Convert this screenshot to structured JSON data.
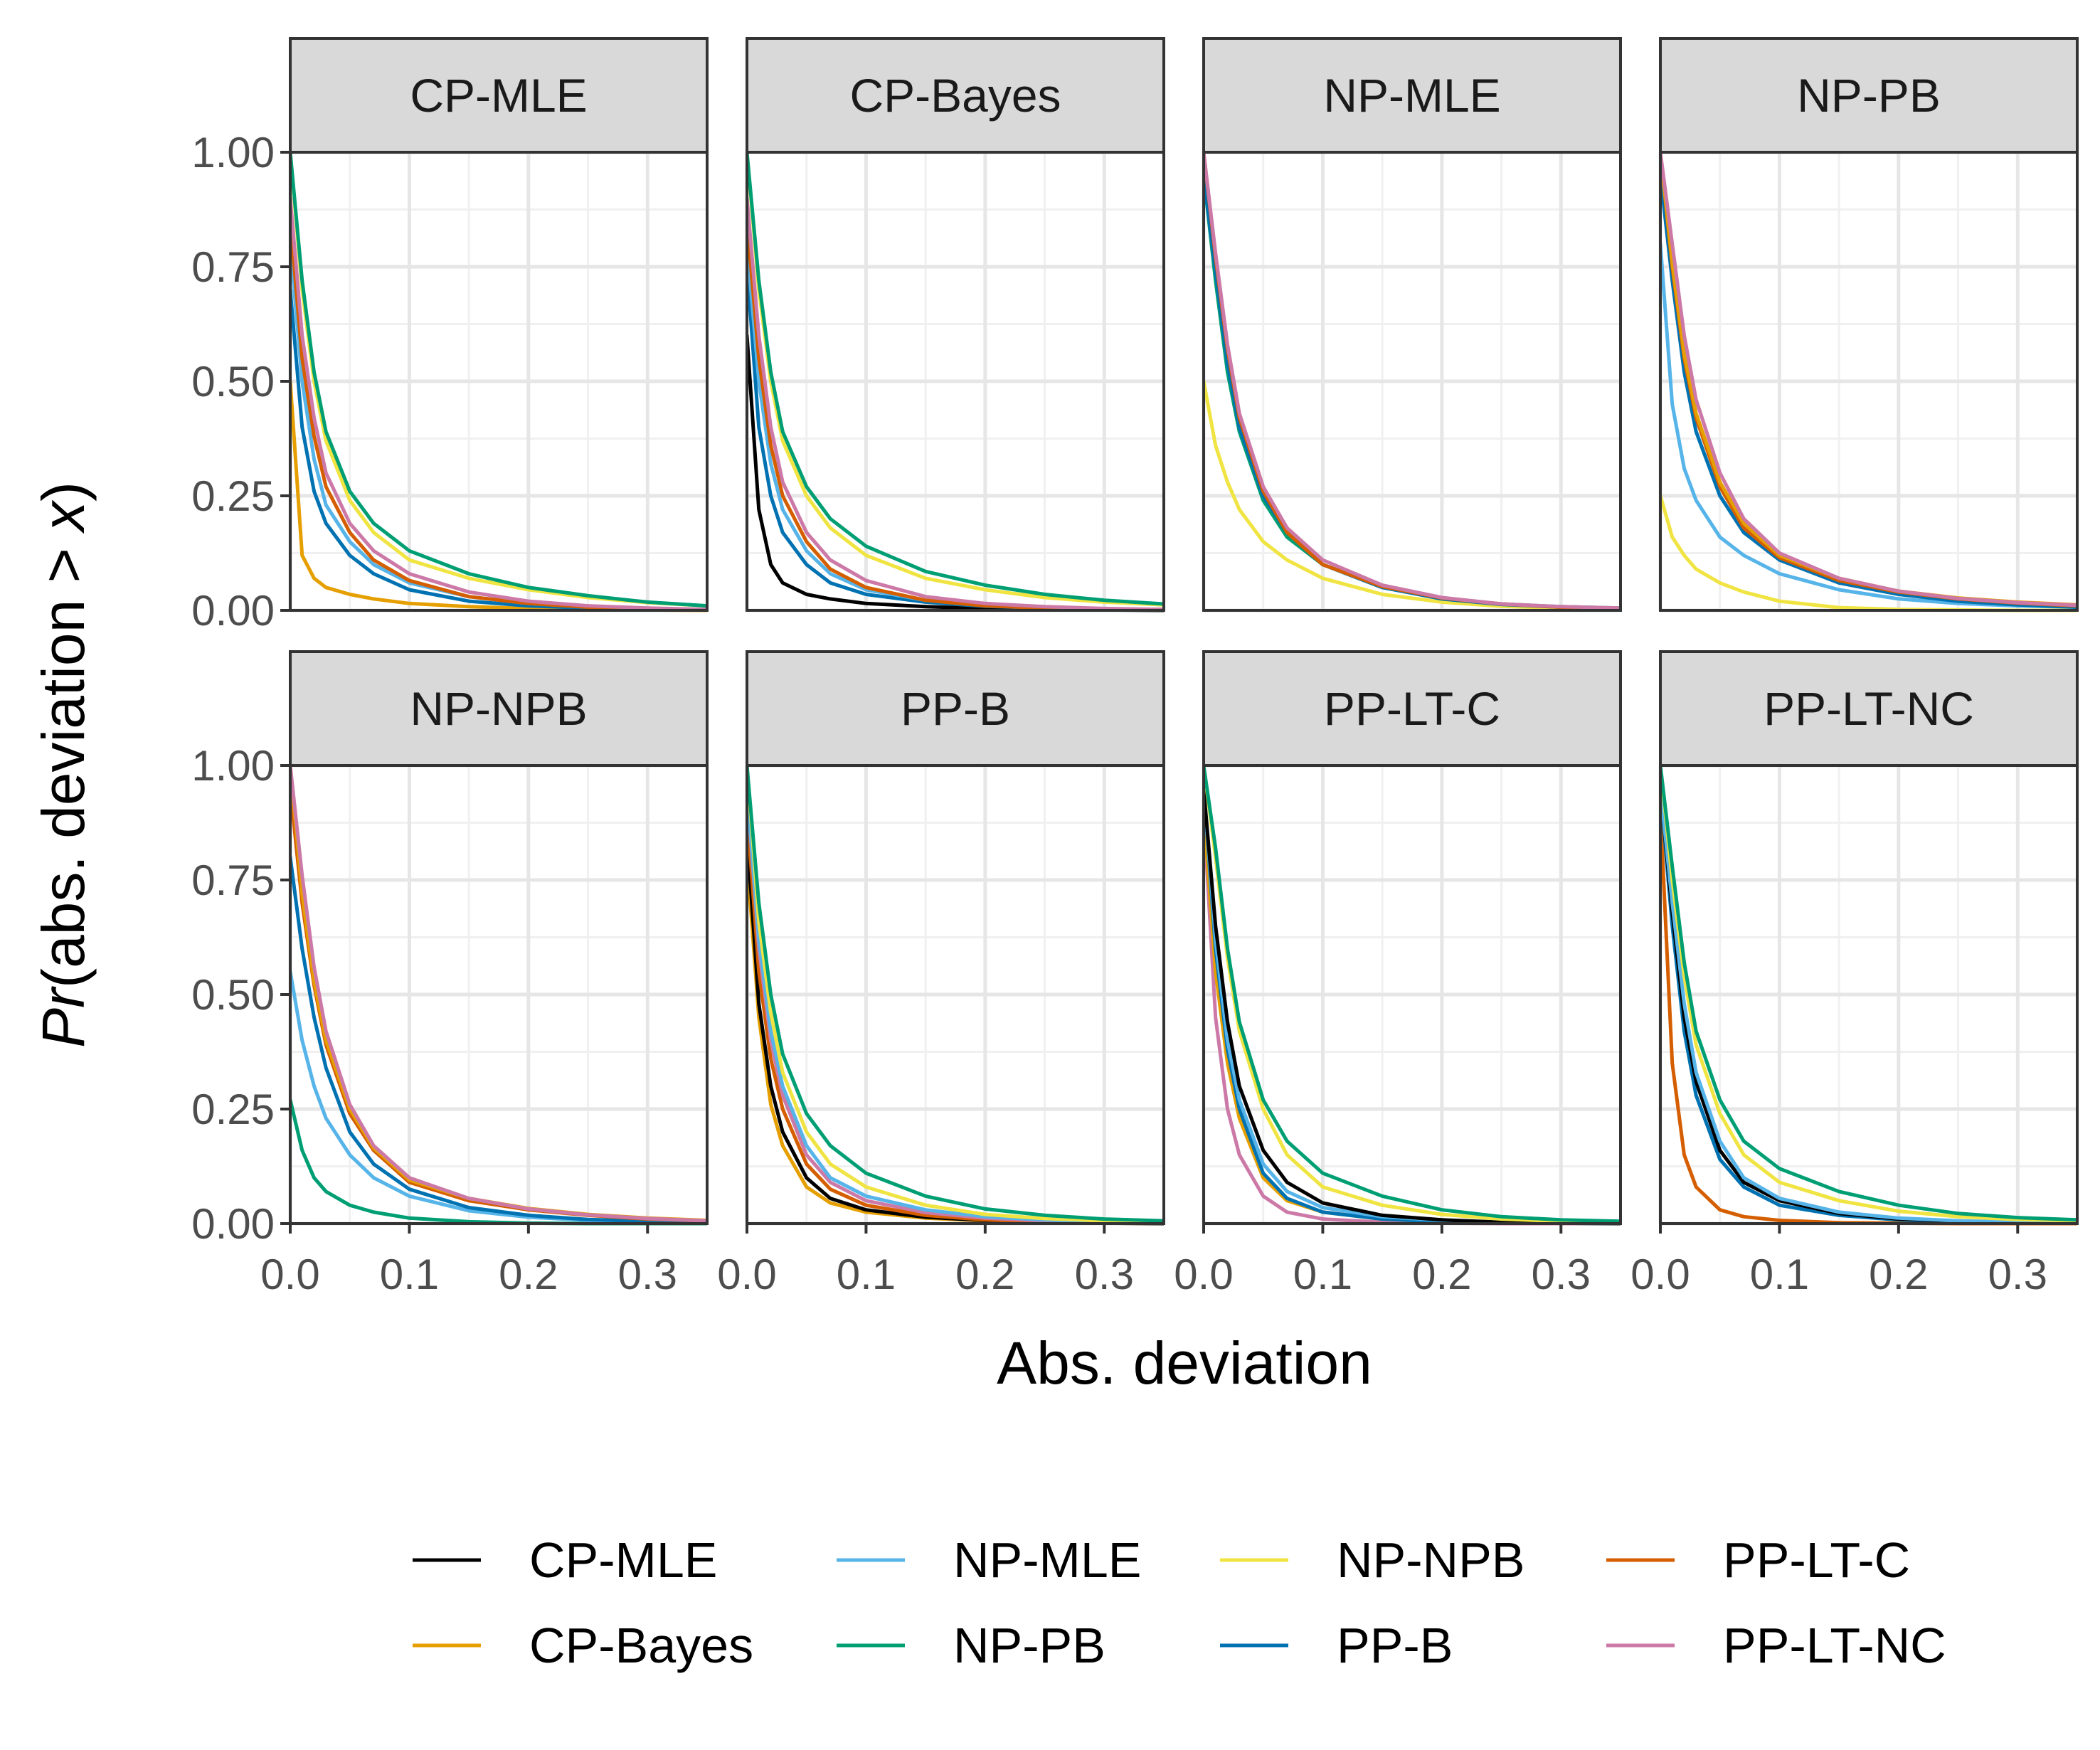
{
  "chart_data": {
    "type": "line",
    "xlabel": "Abs. deviation",
    "ylabel": {
      "italic": "Pr",
      "text": "(abs. deviation > ",
      "var": "x",
      "close": ")"
    },
    "xlim": [
      0,
      0.35
    ],
    "ylim": [
      0,
      1
    ],
    "x_ticks": [
      0,
      0.1,
      0.2,
      0.3
    ],
    "x_tick_labels": [
      "0.0",
      "0.1",
      "0.2",
      "0.3"
    ],
    "y_ticks": [
      0,
      0.25,
      0.5,
      0.75,
      1
    ],
    "y_tick_labels": [
      "0.00",
      "0.25",
      "0.50",
      "0.75",
      "1.00"
    ],
    "grid": true,
    "legend_position": "bottom",
    "series_colors": {
      "CP-MLE": "#000000",
      "CP-Bayes": "#E69F00",
      "NP-MLE": "#56B4E9",
      "NP-PB": "#009E73",
      "NP-NPB": "#F0E442",
      "PP-B": "#0072B2",
      "PP-LT-C": "#D55E00",
      "PP-LT-NC": "#CC79A7"
    },
    "legend_items": [
      "CP-MLE",
      "CP-Bayes",
      "NP-MLE",
      "NP-PB",
      "NP-NPB",
      "PP-B",
      "PP-LT-C",
      "PP-LT-NC"
    ],
    "x": [
      0,
      0.01,
      0.02,
      0.03,
      0.05,
      0.07,
      0.1,
      0.15,
      0.2,
      0.25,
      0.3,
      0.35
    ],
    "panels": [
      {
        "title": "CP-MLE",
        "series": [
          {
            "name": "CP-Bayes",
            "values": [
              0.5,
              0.12,
              0.07,
              0.05,
              0.035,
              0.025,
              0.015,
              0.008,
              0.004,
              0.002,
              0.001,
              0
            ]
          },
          {
            "name": "PP-B",
            "values": [
              0.7,
              0.4,
              0.26,
              0.19,
              0.12,
              0.08,
              0.045,
              0.02,
              0.01,
              0.005,
              0.003,
              0.001
            ]
          },
          {
            "name": "NP-MLE",
            "values": [
              0.8,
              0.5,
              0.33,
              0.23,
              0.15,
              0.1,
              0.06,
              0.03,
              0.015,
              0.008,
              0.004,
              0.002
            ]
          },
          {
            "name": "PP-LT-C",
            "values": [
              0.85,
              0.55,
              0.38,
              0.27,
              0.17,
              0.11,
              0.065,
              0.03,
              0.015,
              0.007,
              0.003,
              0.001
            ]
          },
          {
            "name": "PP-LT-NC",
            "values": [
              0.9,
              0.6,
              0.42,
              0.3,
              0.19,
              0.13,
              0.08,
              0.04,
              0.02,
              0.01,
              0.005,
              0.002
            ]
          },
          {
            "name": "NP-NPB",
            "values": [
              1,
              0.7,
              0.5,
              0.37,
              0.24,
              0.17,
              0.11,
              0.07,
              0.045,
              0.028,
              0.017,
              0.01
            ]
          },
          {
            "name": "NP-PB",
            "values": [
              1,
              0.72,
              0.52,
              0.39,
              0.26,
              0.19,
              0.13,
              0.08,
              0.05,
              0.032,
              0.018,
              0.01
            ]
          }
        ]
      },
      {
        "title": "CP-Bayes",
        "series": [
          {
            "name": "CP-MLE",
            "values": [
              0.6,
              0.22,
              0.1,
              0.06,
              0.035,
              0.025,
              0.015,
              0.008,
              0.004,
              0.002,
              0.001,
              0
            ]
          },
          {
            "name": "PP-B",
            "values": [
              0.75,
              0.4,
              0.25,
              0.17,
              0.1,
              0.06,
              0.035,
              0.018,
              0.009,
              0.005,
              0.003,
              0.002
            ]
          },
          {
            "name": "NP-MLE",
            "values": [
              0.8,
              0.5,
              0.32,
              0.22,
              0.13,
              0.08,
              0.045,
              0.022,
              0.011,
              0.006,
              0.003,
              0.002
            ]
          },
          {
            "name": "PP-LT-C",
            "values": [
              0.85,
              0.55,
              0.36,
              0.25,
              0.15,
              0.09,
              0.05,
              0.022,
              0.01,
              0.005,
              0.003,
              0.002
            ]
          },
          {
            "name": "PP-LT-NC",
            "values": [
              0.9,
              0.6,
              0.4,
              0.28,
              0.17,
              0.11,
              0.065,
              0.03,
              0.015,
              0.008,
              0.004,
              0.002
            ]
          },
          {
            "name": "NP-NPB",
            "values": [
              1,
              0.7,
              0.5,
              0.37,
              0.25,
              0.18,
              0.12,
              0.07,
              0.045,
              0.028,
              0.018,
              0.012
            ]
          },
          {
            "name": "NP-PB",
            "values": [
              1,
              0.72,
              0.52,
              0.39,
              0.27,
              0.2,
              0.14,
              0.085,
              0.055,
              0.035,
              0.022,
              0.014
            ]
          }
        ]
      },
      {
        "title": "NP-MLE",
        "series": [
          {
            "name": "NP-NPB",
            "values": [
              0.5,
              0.36,
              0.28,
              0.22,
              0.15,
              0.11,
              0.07,
              0.035,
              0.018,
              0.009,
              0.005,
              0.003
            ]
          },
          {
            "name": "NP-PB",
            "values": [
              0.95,
              0.72,
              0.52,
              0.39,
              0.24,
              0.16,
              0.1,
              0.05,
              0.027,
              0.014,
              0.008,
              0.005
            ]
          },
          {
            "name": "PP-B",
            "values": [
              0.95,
              0.74,
              0.54,
              0.4,
              0.25,
              0.17,
              0.1,
              0.05,
              0.025,
              0.013,
              0.007,
              0.004
            ]
          },
          {
            "name": "PP-LT-C",
            "values": [
              1,
              0.77,
              0.57,
              0.42,
              0.26,
              0.17,
              0.1,
              0.052,
              0.027,
              0.014,
              0.007,
              0.004
            ]
          },
          {
            "name": "PP-LT-NC",
            "values": [
              1,
              0.78,
              0.58,
              0.43,
              0.27,
              0.18,
              0.11,
              0.055,
              0.028,
              0.014,
              0.008,
              0.005
            ]
          }
        ]
      },
      {
        "title": "NP-PB",
        "series": [
          {
            "name": "NP-NPB",
            "values": [
              0.25,
              0.16,
              0.12,
              0.09,
              0.06,
              0.04,
              0.02,
              0.006,
              0.002,
              0.001,
              0,
              0
            ]
          },
          {
            "name": "NP-MLE",
            "values": [
              0.8,
              0.45,
              0.31,
              0.24,
              0.16,
              0.12,
              0.08,
              0.045,
              0.025,
              0.015,
              0.01,
              0.007
            ]
          },
          {
            "name": "PP-B",
            "values": [
              0.95,
              0.72,
              0.52,
              0.39,
              0.25,
              0.17,
              0.11,
              0.06,
              0.035,
              0.02,
              0.012,
              0.007
            ]
          },
          {
            "name": "PP-LT-C",
            "values": [
              1,
              0.75,
              0.55,
              0.42,
              0.27,
              0.18,
              0.115,
              0.065,
              0.04,
              0.025,
              0.016,
              0.01
            ]
          },
          {
            "name": "CP-Bayes",
            "values": [
              1,
              0.76,
              0.56,
              0.43,
              0.28,
              0.19,
              0.12,
              0.07,
              0.042,
              0.027,
              0.018,
              0.012
            ]
          },
          {
            "name": "PP-LT-NC",
            "values": [
              1,
              0.8,
              0.6,
              0.46,
              0.3,
              0.2,
              0.125,
              0.07,
              0.042,
              0.026,
              0.017,
              0.011
            ]
          }
        ]
      },
      {
        "title": "NP-NPB",
        "series": [
          {
            "name": "NP-PB",
            "values": [
              0.27,
              0.16,
              0.1,
              0.07,
              0.04,
              0.025,
              0.012,
              0.004,
              0.001,
              0,
              0,
              0
            ]
          },
          {
            "name": "NP-MLE",
            "values": [
              0.55,
              0.4,
              0.3,
              0.23,
              0.15,
              0.1,
              0.06,
              0.028,
              0.014,
              0.007,
              0.004,
              0.002
            ]
          },
          {
            "name": "PP-B",
            "values": [
              0.8,
              0.6,
              0.45,
              0.34,
              0.2,
              0.13,
              0.075,
              0.035,
              0.018,
              0.009,
              0.005,
              0.003
            ]
          },
          {
            "name": "PP-LT-C",
            "values": [
              0.95,
              0.7,
              0.52,
              0.39,
              0.24,
              0.16,
              0.09,
              0.05,
              0.03,
              0.018,
              0.01,
              0.006
            ]
          },
          {
            "name": "CP-Bayes",
            "values": [
              1,
              0.72,
              0.53,
              0.4,
              0.25,
              0.165,
              0.095,
              0.055,
              0.033,
              0.02,
              0.012,
              0.007
            ]
          },
          {
            "name": "PP-LT-NC",
            "values": [
              1,
              0.76,
              0.56,
              0.42,
              0.26,
              0.17,
              0.1,
              0.055,
              0.032,
              0.019,
              0.011,
              0.006
            ]
          }
        ]
      },
      {
        "title": "PP-B",
        "series": [
          {
            "name": "CP-Bayes",
            "values": [
              0.8,
              0.45,
              0.26,
              0.17,
              0.08,
              0.045,
              0.025,
              0.012,
              0.006,
              0.003,
              0.001,
              0
            ]
          },
          {
            "name": "CP-MLE",
            "values": [
              0.85,
              0.48,
              0.3,
              0.2,
              0.1,
              0.055,
              0.03,
              0.014,
              0.007,
              0.003,
              0.001,
              0
            ]
          },
          {
            "name": "PP-LT-C",
            "values": [
              0.9,
              0.55,
              0.36,
              0.25,
              0.13,
              0.075,
              0.04,
              0.018,
              0.008,
              0.004,
              0.002,
              0.001
            ]
          },
          {
            "name": "PP-LT-NC",
            "values": [
              0.95,
              0.6,
              0.4,
              0.28,
              0.15,
              0.09,
              0.05,
              0.024,
              0.012,
              0.006,
              0.003,
              0.001
            ]
          },
          {
            "name": "NP-MLE",
            "values": [
              0.95,
              0.62,
              0.42,
              0.3,
              0.17,
              0.1,
              0.06,
              0.03,
              0.015,
              0.008,
              0.004,
              0.002
            ]
          },
          {
            "name": "NP-NPB",
            "values": [
              1,
              0.66,
              0.46,
              0.33,
              0.2,
              0.13,
              0.08,
              0.04,
              0.02,
              0.011,
              0.006,
              0.003
            ]
          },
          {
            "name": "NP-PB",
            "values": [
              1,
              0.7,
              0.5,
              0.37,
              0.24,
              0.17,
              0.11,
              0.06,
              0.032,
              0.018,
              0.01,
              0.006
            ]
          }
        ]
      },
      {
        "title": "PP-LT-C",
        "series": [
          {
            "name": "PP-LT-NC",
            "values": [
              0.9,
              0.45,
              0.25,
              0.15,
              0.06,
              0.025,
              0.01,
              0.003,
              0.001,
              0,
              0,
              0
            ]
          },
          {
            "name": "CP-Bayes",
            "values": [
              0.9,
              0.55,
              0.35,
              0.23,
              0.1,
              0.05,
              0.025,
              0.01,
              0.004,
              0.002,
              0.001,
              0
            ]
          },
          {
            "name": "PP-B",
            "values": [
              0.95,
              0.6,
              0.38,
              0.25,
              0.11,
              0.055,
              0.025,
              0.01,
              0.004,
              0.002,
              0.001,
              0
            ]
          },
          {
            "name": "NP-MLE",
            "values": [
              0.95,
              0.62,
              0.4,
              0.27,
              0.13,
              0.07,
              0.035,
              0.015,
              0.007,
              0.003,
              0.001,
              0
            ]
          },
          {
            "name": "CP-MLE",
            "values": [
              0.95,
              0.65,
              0.44,
              0.3,
              0.16,
              0.09,
              0.045,
              0.018,
              0.008,
              0.003,
              0.001,
              0
            ]
          },
          {
            "name": "NP-NPB",
            "values": [
              1,
              0.8,
              0.58,
              0.42,
              0.25,
              0.15,
              0.08,
              0.04,
              0.02,
              0.01,
              0.005,
              0.003
            ]
          },
          {
            "name": "NP-PB",
            "values": [
              1,
              0.82,
              0.6,
              0.44,
              0.27,
              0.18,
              0.11,
              0.06,
              0.03,
              0.015,
              0.008,
              0.005
            ]
          }
        ]
      },
      {
        "title": "PP-LT-NC",
        "series": [
          {
            "name": "PP-LT-C",
            "values": [
              0.9,
              0.35,
              0.15,
              0.08,
              0.03,
              0.015,
              0.007,
              0.002,
              0.001,
              0,
              0,
              0
            ]
          },
          {
            "name": "PP-B",
            "values": [
              0.95,
              0.65,
              0.42,
              0.28,
              0.14,
              0.08,
              0.04,
              0.018,
              0.008,
              0.004,
              0.002,
              0.001
            ]
          },
          {
            "name": "CP-MLE",
            "values": [
              0.95,
              0.68,
              0.45,
              0.31,
              0.16,
              0.09,
              0.05,
              0.022,
              0.01,
              0.005,
              0.002,
              0.001
            ]
          },
          {
            "name": "NP-MLE",
            "values": [
              0.95,
              0.7,
              0.48,
              0.33,
              0.18,
              0.1,
              0.055,
              0.025,
              0.012,
              0.006,
              0.003,
              0.002
            ]
          },
          {
            "name": "NP-NPB",
            "values": [
              1,
              0.75,
              0.54,
              0.39,
              0.24,
              0.15,
              0.09,
              0.05,
              0.027,
              0.015,
              0.009,
              0.006
            ]
          },
          {
            "name": "NP-PB",
            "values": [
              1,
              0.78,
              0.57,
              0.42,
              0.27,
              0.18,
              0.12,
              0.07,
              0.04,
              0.022,
              0.013,
              0.008
            ]
          }
        ]
      }
    ]
  }
}
